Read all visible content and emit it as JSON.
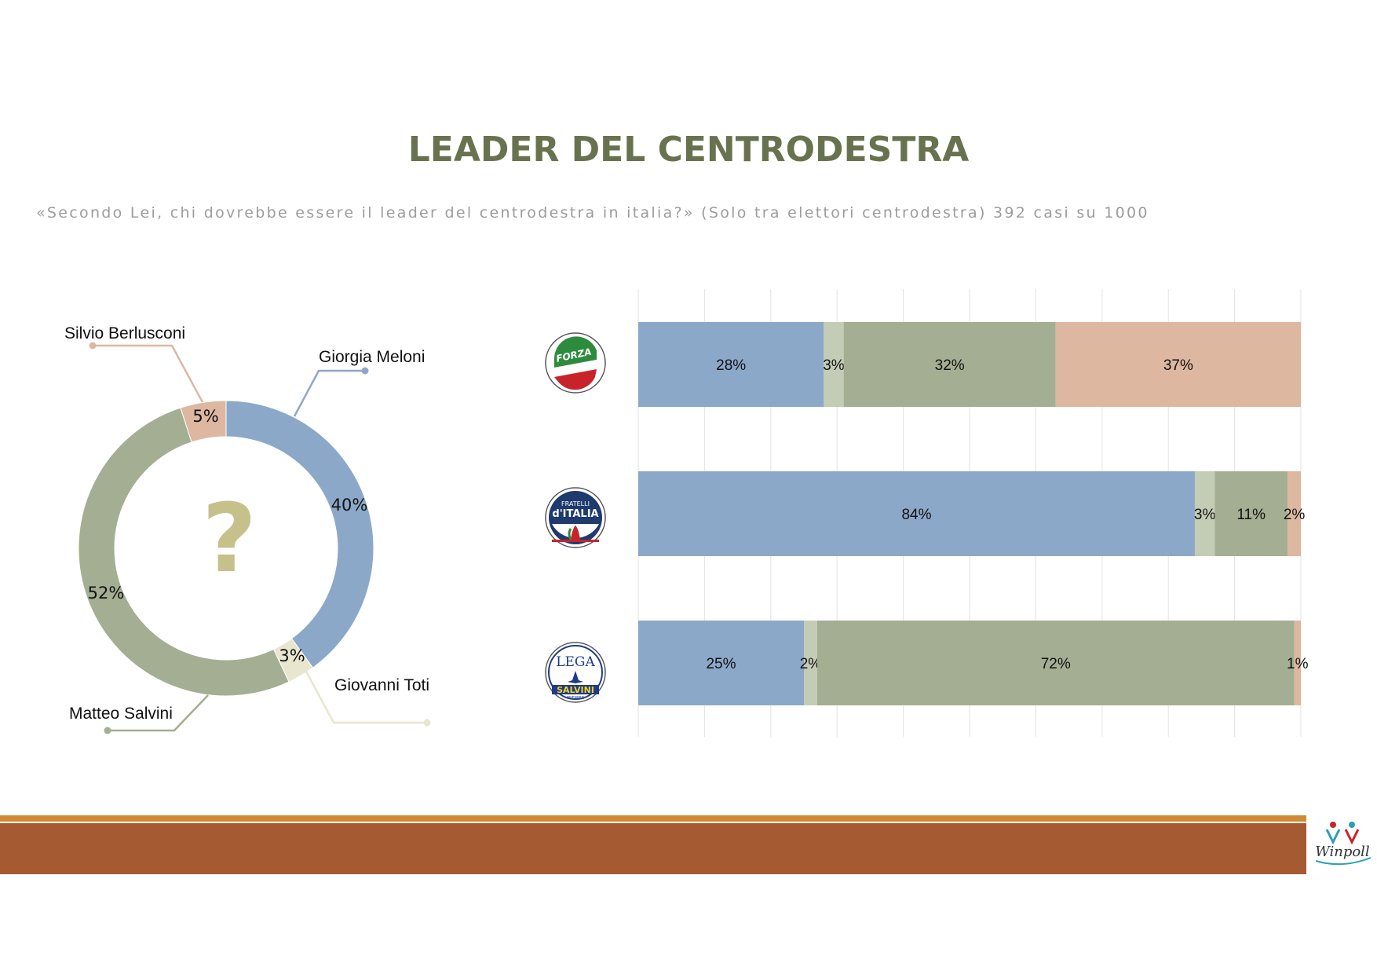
{
  "header": {
    "title": "LEADER DEL CENTRODESTRA",
    "subtitle": "«Secondo Lei, chi dovrebbe essere il leader del centrodestra in italia?» (Solo tra elettori centrodestra) 392 casi su 1000"
  },
  "colors": {
    "meloni": "#8ca8c9",
    "toti": "#c3ccb4",
    "salvini": "#a4ae92",
    "berlusconi": "#ddb7a0",
    "toti_donut": "#e8e6cf",
    "question": "#c6c08a",
    "grid": "#e3e3e3"
  },
  "chart_data": [
    {
      "type": "pie",
      "variant": "donut",
      "center_symbol": "?",
      "slices": [
        {
          "label": "Giorgia Meloni",
          "value": 40,
          "display": "40%"
        },
        {
          "label": "Giovanni Toti",
          "value": 3,
          "display": "3%"
        },
        {
          "label": "Matteo Salvini",
          "value": 52,
          "display": "52%"
        },
        {
          "label": "Silvio Berlusconi",
          "value": 5,
          "display": "5%"
        }
      ]
    },
    {
      "type": "bar",
      "orientation": "horizontal",
      "stacked": true,
      "grid": true,
      "xlim": [
        0,
        100
      ],
      "categories": [
        "Forza Italia",
        "Fratelli d'Italia",
        "Lega"
      ],
      "category_logos": [
        "forza-italia-logo",
        "fratelli-d-italia-logo",
        "lega-salvini-logo"
      ],
      "series": [
        {
          "name": "Giorgia Meloni",
          "values": [
            28,
            84,
            25
          ],
          "labels": [
            "28%",
            "84%",
            "25%"
          ]
        },
        {
          "name": "Giovanni Toti",
          "values": [
            3,
            3,
            2
          ],
          "labels": [
            "3%",
            "3%",
            "2%"
          ]
        },
        {
          "name": "Matteo Salvini",
          "values": [
            32,
            11,
            72
          ],
          "labels": [
            "32%",
            "11%",
            "72%"
          ]
        },
        {
          "name": "Silvio Berlusconi",
          "values": [
            37,
            2,
            1
          ],
          "labels": [
            "37%",
            "2%",
            "1%"
          ]
        }
      ]
    }
  ],
  "logos": {
    "forza_italia": {
      "line1": "FORZA",
      "line2": "ITALIA"
    },
    "fratelli": {
      "line1": "FRATELLI",
      "line2": "d'ITALIA"
    },
    "lega": {
      "line1": "LEGA",
      "line2": "SALVINI",
      "line3": "PREMIER"
    },
    "winpoll": "Winpoll"
  }
}
